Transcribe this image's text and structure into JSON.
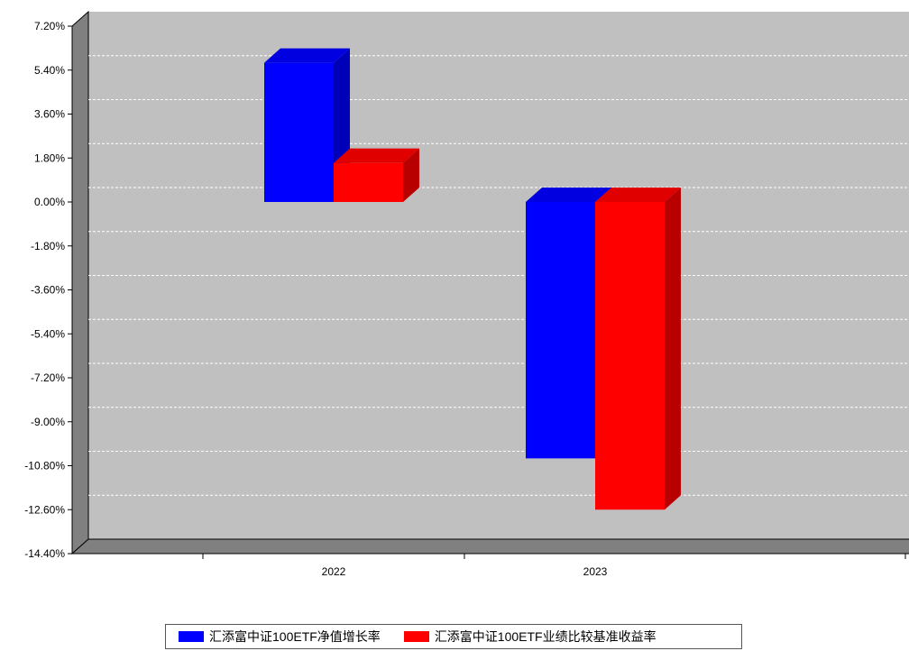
{
  "chart_data": {
    "type": "bar",
    "categories": [
      "2022",
      "2023"
    ],
    "series": [
      {
        "name": "汇添富中证100ETF净值增长率",
        "values": [
          5.7,
          -10.5
        ],
        "color": "#0000FF"
      },
      {
        "name": "汇添富中证100ETF业绩比较基准收益率",
        "values": [
          1.6,
          -12.6
        ],
        "color": "#FF0000"
      }
    ],
    "ylim": [
      -14.4,
      7.2
    ],
    "yticks": [
      "7.20%",
      "5.40%",
      "3.60%",
      "1.80%",
      "0.00%",
      "-1.80%",
      "-3.60%",
      "-5.40%",
      "-7.20%",
      "-9.00%",
      "-10.80%",
      "-12.60%",
      "-14.40%"
    ],
    "grid": true,
    "legend_position": "bottom",
    "style": "3d"
  }
}
